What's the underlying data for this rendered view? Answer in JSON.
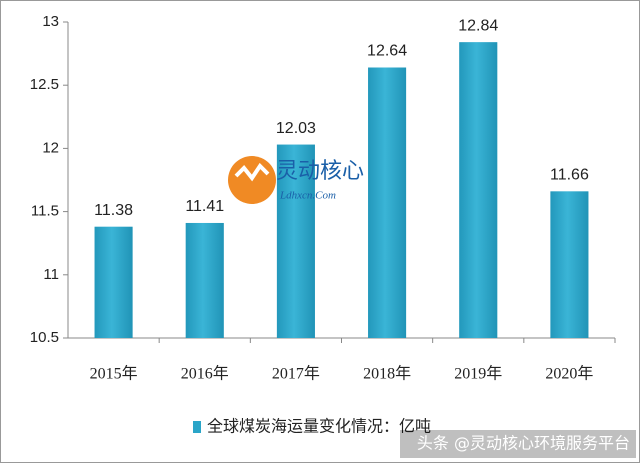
{
  "chart_data": {
    "type": "bar",
    "categories": [
      "2015年",
      "2016年",
      "2017年",
      "2018年",
      "2019年",
      "2020年"
    ],
    "series": [
      {
        "name": "全球煤炭海运量变化情况：亿吨",
        "color": "#2aa5c8",
        "values": [
          11.38,
          11.41,
          12.03,
          12.64,
          12.84,
          11.66
        ]
      }
    ],
    "ylim": [
      10.5,
      13
    ],
    "yticks": [
      10.5,
      11,
      11.5,
      12,
      12.5,
      13
    ],
    "grid": false,
    "watermarks": [
      "灵动核心",
      "Ldhxcn.Com",
      "头条 @灵动核心环境服务平台"
    ]
  }
}
